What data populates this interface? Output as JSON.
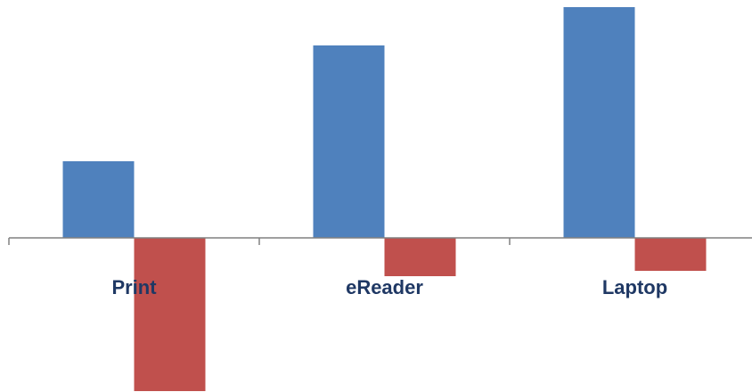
{
  "chart_data": {
    "type": "bar",
    "categories": [
      "Print",
      "eReader",
      "Laptop"
    ],
    "series": [
      {
        "values": [
          86,
          216,
          259
        ],
        "color": "#4F81BD"
      },
      {
        "values": [
          -172,
          -43,
          -37
        ],
        "color": "#C0504D"
      }
    ],
    "title": "",
    "xlabel": "",
    "ylabel": "",
    "ylim": [
      -172,
      259
    ],
    "grid": false,
    "legend": "none",
    "label_color": "#1F3864",
    "axis_color": "#808080"
  }
}
